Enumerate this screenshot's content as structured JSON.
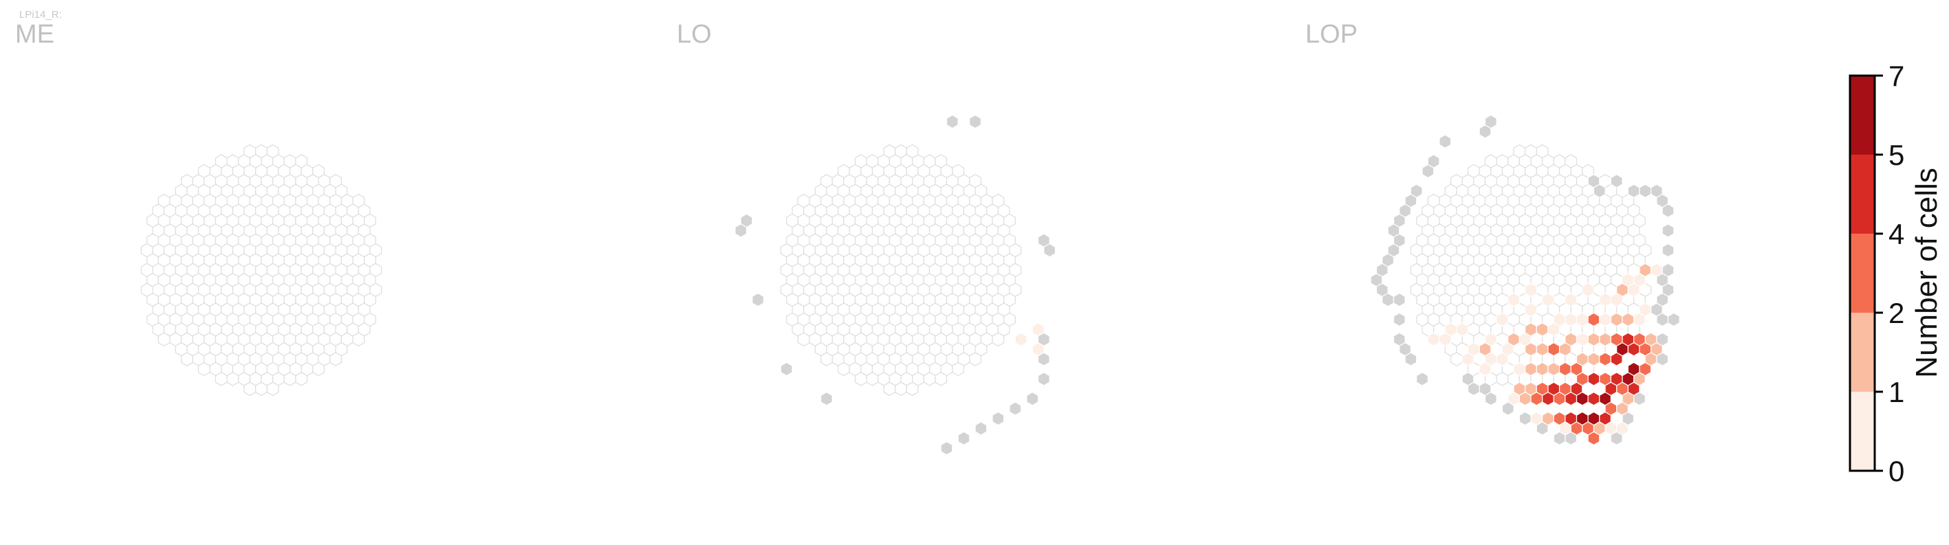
{
  "figure_title": "LPi14_R:",
  "chart_data": [
    {
      "type": "heatmap",
      "title": "ME",
      "cells": []
    },
    {
      "type": "heatmap",
      "title": "LO",
      "cells": [
        {
          "q": 12,
          "r": -15,
          "count": null
        },
        {
          "q": 14,
          "r": -15,
          "count": null
        },
        {
          "q": -12,
          "r": -4,
          "count": null
        },
        {
          "q": -11,
          "r": -5,
          "count": null
        },
        {
          "q": -14,
          "r": 3,
          "count": null
        },
        {
          "q": -15,
          "r": 10,
          "count": null
        },
        {
          "q": -13,
          "r": 13,
          "count": null
        },
        {
          "q": 14,
          "r": -3,
          "count": null
        },
        {
          "q": 14,
          "r": -2,
          "count": null
        },
        {
          "q": 7,
          "r": 7,
          "count": 1
        },
        {
          "q": 9,
          "r": 6,
          "count": 1
        },
        {
          "q": 9,
          "r": 7,
          "count": null
        },
        {
          "q": 8,
          "r": 8,
          "count": 1
        },
        {
          "q": 8,
          "r": 9,
          "count": null
        },
        {
          "q": 7,
          "r": 11,
          "count": null
        },
        {
          "q": 5,
          "r": 13,
          "count": null
        },
        {
          "q": 3,
          "r": 14,
          "count": null
        },
        {
          "q": 1,
          "r": 15,
          "count": null
        },
        {
          "q": -1,
          "r": 16,
          "count": null
        },
        {
          "q": -3,
          "r": 17,
          "count": null
        },
        {
          "q": -5,
          "r": 18,
          "count": null
        }
      ]
    },
    {
      "type": "heatmap",
      "title": "LOP",
      "cells": [
        {
          "q": -4,
          "r": -10,
          "count": null
        },
        {
          "q": -3,
          "r": -11,
          "count": null
        },
        {
          "q": -1,
          "r": -13,
          "count": null
        },
        {
          "q": 3,
          "r": -14,
          "count": null
        },
        {
          "q": 4,
          "r": -15,
          "count": null
        },
        {
          "q": -6,
          "r": -8,
          "count": null
        },
        {
          "q": -7,
          "r": -7,
          "count": null
        },
        {
          "q": -8,
          "r": -6,
          "count": null
        },
        {
          "q": -9,
          "r": -5,
          "count": null
        },
        {
          "q": -10,
          "r": -4,
          "count": null
        },
        {
          "q": -10,
          "r": -3,
          "count": null
        },
        {
          "q": -11,
          "r": -2,
          "count": null
        },
        {
          "q": -12,
          "r": -1,
          "count": null
        },
        {
          "q": -13,
          "r": 0,
          "count": null
        },
        {
          "q": -14,
          "r": 1,
          "count": null
        },
        {
          "q": -14,
          "r": 2,
          "count": null
        },
        {
          "q": -14,
          "r": 3,
          "count": null
        },
        {
          "q": -13,
          "r": 3,
          "count": null
        },
        {
          "q": -14,
          "r": 5,
          "count": null
        },
        {
          "q": -15,
          "r": 7,
          "count": null
        },
        {
          "q": -15,
          "r": 8,
          "count": null
        },
        {
          "q": -15,
          "r": 9,
          "count": null
        },
        {
          "q": -15,
          "r": 11,
          "count": null
        },
        {
          "q": 10,
          "r": -9,
          "count": null
        },
        {
          "q": 10,
          "r": -8,
          "count": null
        },
        {
          "q": 12,
          "r": -9,
          "count": null
        },
        {
          "q": 13,
          "r": -8,
          "count": null
        },
        {
          "q": 14,
          "r": -8,
          "count": null
        },
        {
          "q": 15,
          "r": -8,
          "count": null
        },
        {
          "q": 15,
          "r": -7,
          "count": null
        },
        {
          "q": 15,
          "r": -6,
          "count": null
        },
        {
          "q": 14,
          "r": -4,
          "count": null
        },
        {
          "q": 13,
          "r": -2,
          "count": null
        },
        {
          "q": 12,
          "r": 0,
          "count": null
        },
        {
          "q": 11,
          "r": 1,
          "count": null
        },
        {
          "q": 11,
          "r": 2,
          "count": null
        },
        {
          "q": 10,
          "r": 3,
          "count": null
        },
        {
          "q": 9,
          "r": 4,
          "count": null
        },
        {
          "q": 10,
          "r": 0,
          "count": 2
        },
        {
          "q": 11,
          "r": 0,
          "count": 1
        },
        {
          "q": 9,
          "r": 1,
          "count": 1
        },
        {
          "q": 8,
          "r": 1,
          "count": 1
        },
        {
          "q": 7,
          "r": 2,
          "count": 2
        },
        {
          "q": 8,
          "r": 2,
          "count": 1
        },
        {
          "q": 5,
          "r": 3,
          "count": 1
        },
        {
          "q": 6,
          "r": 3,
          "count": 1
        },
        {
          "q": 4,
          "r": 2,
          "count": 1
        },
        {
          "q": 2,
          "r": 3,
          "count": 1
        },
        {
          "q": 0,
          "r": 3,
          "count": 1
        },
        {
          "q": -1,
          "r": 2,
          "count": 1
        },
        {
          "q": -2,
          "r": 4,
          "count": 1
        },
        {
          "q": -3,
          "r": 3,
          "count": 1
        },
        {
          "q": -5,
          "r": 5,
          "count": 1
        },
        {
          "q": -7,
          "r": 7,
          "count": 1
        },
        {
          "q": -9,
          "r": 6,
          "count": 1
        },
        {
          "q": -10,
          "r": 6,
          "count": 1
        },
        {
          "q": -11,
          "r": 7,
          "count": 1
        },
        {
          "q": -12,
          "r": 7,
          "count": 1
        },
        {
          "q": -8,
          "r": 8,
          "count": 2
        },
        {
          "q": -9,
          "r": 8,
          "count": 1
        },
        {
          "q": -10,
          "r": 9,
          "count": 1
        },
        {
          "q": -8,
          "r": 9,
          "count": 1
        },
        {
          "q": -9,
          "r": 10,
          "count": 1
        },
        {
          "q": -7,
          "r": 9,
          "count": 1
        },
        {
          "q": -6,
          "r": 8,
          "count": 1
        },
        {
          "q": -5,
          "r": 7,
          "count": 2
        },
        {
          "q": -4,
          "r": 7,
          "count": 1
        },
        {
          "q": -3,
          "r": 6,
          "count": 2
        },
        {
          "q": -2,
          "r": 6,
          "count": 2
        },
        {
          "q": -1,
          "r": 6,
          "count": 1
        },
        {
          "q": 0,
          "r": 5,
          "count": 1
        },
        {
          "q": 1,
          "r": 5,
          "count": 1
        },
        {
          "q": 2,
          "r": 5,
          "count": 1
        },
        {
          "q": 3,
          "r": 5,
          "count": 4
        },
        {
          "q": 4,
          "r": 5,
          "count": 1
        },
        {
          "q": 5,
          "r": 5,
          "count": 2
        },
        {
          "q": 6,
          "r": 5,
          "count": 2
        },
        {
          "q": 7,
          "r": 5,
          "count": 1
        },
        {
          "q": 8,
          "r": 4,
          "count": 1
        },
        {
          "q": -4,
          "r": 8,
          "count": 2
        },
        {
          "q": -3,
          "r": 8,
          "count": 2
        },
        {
          "q": -2,
          "r": 8,
          "count": 4
        },
        {
          "q": -1,
          "r": 8,
          "count": 2
        },
        {
          "q": 0,
          "r": 7,
          "count": 2
        },
        {
          "q": 1,
          "r": 7,
          "count": 1
        },
        {
          "q": 2,
          "r": 7,
          "count": 2
        },
        {
          "q": 3,
          "r": 7,
          "count": 2
        },
        {
          "q": 4,
          "r": 7,
          "count": 4
        },
        {
          "q": 5,
          "r": 7,
          "count": 5
        },
        {
          "q": 6,
          "r": 7,
          "count": 4
        },
        {
          "q": 7,
          "r": 7,
          "count": 2
        },
        {
          "q": 8,
          "r": 7,
          "count": null
        },
        {
          "q": -6,
          "r": 10,
          "count": 1
        },
        {
          "q": -5,
          "r": 10,
          "count": 2
        },
        {
          "q": -4,
          "r": 10,
          "count": 2
        },
        {
          "q": -3,
          "r": 10,
          "count": 2
        },
        {
          "q": -2,
          "r": 10,
          "count": 4
        },
        {
          "q": -1,
          "r": 10,
          "count": 4
        },
        {
          "q": 0,
          "r": 9,
          "count": 2
        },
        {
          "q": 1,
          "r": 9,
          "count": 2
        },
        {
          "q": 2,
          "r": 9,
          "count": 4
        },
        {
          "q": 3,
          "r": 9,
          "count": 5
        },
        {
          "q": 4,
          "r": 8,
          "count": 7
        },
        {
          "q": 5,
          "r": 8,
          "count": 5
        },
        {
          "q": 6,
          "r": 8,
          "count": 4
        },
        {
          "q": 7,
          "r": 8,
          "count": 2
        },
        {
          "q": -7,
          "r": 12,
          "count": 2
        },
        {
          "q": -6,
          "r": 12,
          "count": 2
        },
        {
          "q": -5,
          "r": 12,
          "count": 4
        },
        {
          "q": -4,
          "r": 12,
          "count": 5
        },
        {
          "q": -3,
          "r": 12,
          "count": 4
        },
        {
          "q": -2,
          "r": 12,
          "count": 5
        },
        {
          "q": -1,
          "r": 11,
          "count": 4
        },
        {
          "q": 0,
          "r": 11,
          "count": 5
        },
        {
          "q": 1,
          "r": 11,
          "count": 4
        },
        {
          "q": 2,
          "r": 11,
          "count": 5
        },
        {
          "q": 3,
          "r": 11,
          "count": 7
        },
        {
          "q": 4,
          "r": 10,
          "count": 7
        },
        {
          "q": 5,
          "r": 10,
          "count": 4
        },
        {
          "q": 6,
          "r": 9,
          "count": 2
        },
        {
          "q": -8,
          "r": 13,
          "count": 1
        },
        {
          "q": -7,
          "r": 13,
          "count": 2
        },
        {
          "q": -6,
          "r": 13,
          "count": 4
        },
        {
          "q": -5,
          "r": 13,
          "count": 5
        },
        {
          "q": -4,
          "r": 13,
          "count": 4
        },
        {
          "q": -3,
          "r": 13,
          "count": 5
        },
        {
          "q": -2,
          "r": 13,
          "count": 7
        },
        {
          "q": -1,
          "r": 13,
          "count": 5
        },
        {
          "q": 0,
          "r": 13,
          "count": 7
        },
        {
          "q": 1,
          "r": 12,
          "count": 5
        },
        {
          "q": 2,
          "r": 12,
          "count": 4
        },
        {
          "q": 3,
          "r": 12,
          "count": 5
        },
        {
          "q": 4,
          "r": 11,
          "count": 2
        },
        {
          "q": -7,
          "r": 15,
          "count": 1
        },
        {
          "q": -6,
          "r": 15,
          "count": 2
        },
        {
          "q": -5,
          "r": 15,
          "count": 4
        },
        {
          "q": -4,
          "r": 15,
          "count": 5
        },
        {
          "q": -3,
          "r": 15,
          "count": 7
        },
        {
          "q": -2,
          "r": 15,
          "count": 7
        },
        {
          "q": -1,
          "r": 15,
          "count": 5
        },
        {
          "q": 0,
          "r": 14,
          "count": 4
        },
        {
          "q": 1,
          "r": 14,
          "count": 2
        },
        {
          "q": 2,
          "r": 13,
          "count": 2
        },
        {
          "q": -5,
          "r": 16,
          "count": 1
        },
        {
          "q": -4,
          "r": 16,
          "count": 4
        },
        {
          "q": -3,
          "r": 16,
          "count": 4
        },
        {
          "q": -2,
          "r": 16,
          "count": 2
        },
        {
          "q": -1,
          "r": 16,
          "count": 1
        },
        {
          "q": 0,
          "r": 16,
          "count": 1
        },
        {
          "q": -3,
          "r": 17,
          "count": 4
        },
        {
          "q": -11,
          "r": 11,
          "count": null
        },
        {
          "q": -11,
          "r": 12,
          "count": null
        },
        {
          "q": -10,
          "r": 12,
          "count": null
        },
        {
          "q": -10,
          "r": 13,
          "count": null
        },
        {
          "q": -9,
          "r": 14,
          "count": null
        },
        {
          "q": -8,
          "r": 15,
          "count": null
        },
        {
          "q": -7,
          "r": 16,
          "count": null
        },
        {
          "q": -6,
          "r": 17,
          "count": null
        },
        {
          "q": -5,
          "r": 17,
          "count": null
        },
        {
          "q": -1,
          "r": 17,
          "count": null
        },
        {
          "q": 1,
          "r": 15,
          "count": null
        },
        {
          "q": 3,
          "r": 13,
          "count": null
        },
        {
          "q": 7,
          "r": 9,
          "count": null
        },
        {
          "q": 9,
          "r": 5,
          "count": null
        },
        {
          "q": 10,
          "r": 5,
          "count": null
        }
      ]
    }
  ],
  "colorbar": {
    "label": "Number of cells",
    "ticks": [
      "0",
      "1",
      "2",
      "4",
      "5",
      "7"
    ],
    "bins": [
      {
        "range": [
          0,
          1
        ],
        "color": "#fdeee6"
      },
      {
        "range": [
          1,
          2
        ],
        "color": "#fbbda2"
      },
      {
        "range": [
          2,
          4
        ],
        "color": "#f56d50"
      },
      {
        "range": [
          4,
          5
        ],
        "color": "#d92b26"
      },
      {
        "range": [
          5,
          7
        ],
        "color": "#a50f15"
      }
    ]
  },
  "colors": {
    "empty_stroke": "#dddddd",
    "empty_fill": "#ffffff",
    "outside_fill": "#d3d3d3",
    "title_color": "#c0c0c0"
  }
}
